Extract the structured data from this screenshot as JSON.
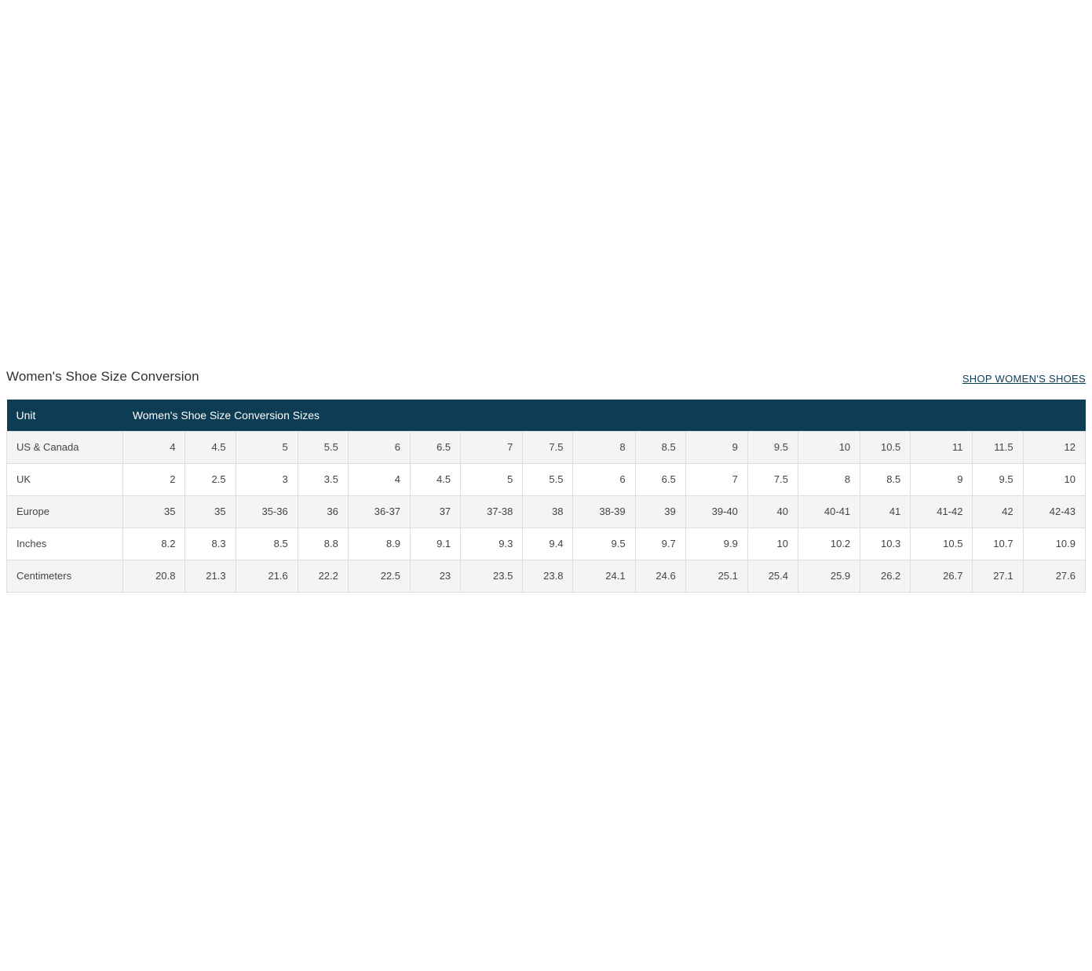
{
  "page": {
    "title": "Women's Shoe Size Conversion",
    "shop_link_label": "SHOP WOMEN'S SHOES"
  },
  "colors": {
    "header_bg": "#0d3c55",
    "header_text": "#ffffff",
    "row_alt_bg": "#f4f4f4",
    "row_bg": "#ffffff",
    "cell_border": "#dddddd",
    "body_text": "#444444",
    "link_text": "#0d3c55"
  },
  "table": {
    "header": {
      "unit_label": "Unit",
      "sizes_label": "Women's Shoe Size Conversion Sizes"
    },
    "rows": [
      {
        "label": "US & Canada",
        "values": [
          "4",
          "4.5",
          "5",
          "5.5",
          "6",
          "6.5",
          "7",
          "7.5",
          "8",
          "8.5",
          "9",
          "9.5",
          "10",
          "10.5",
          "11",
          "11.5",
          "12"
        ]
      },
      {
        "label": "UK",
        "values": [
          "2",
          "2.5",
          "3",
          "3.5",
          "4",
          "4.5",
          "5",
          "5.5",
          "6",
          "6.5",
          "7",
          "7.5",
          "8",
          "8.5",
          "9",
          "9.5",
          "10"
        ]
      },
      {
        "label": "Europe",
        "values": [
          "35",
          "35",
          "35-36",
          "36",
          "36-37",
          "37",
          "37-38",
          "38",
          "38-39",
          "39",
          "39-40",
          "40",
          "40-41",
          "41",
          "41-42",
          "42",
          "42-43"
        ]
      },
      {
        "label": "Inches",
        "values": [
          "8.2",
          "8.3",
          "8.5",
          "8.8",
          "8.9",
          "9.1",
          "9.3",
          "9.4",
          "9.5",
          "9.7",
          "9.9",
          "10",
          "10.2",
          "10.3",
          "10.5",
          "10.7",
          "10.9"
        ]
      },
      {
        "label": "Centimeters",
        "values": [
          "20.8",
          "21.3",
          "21.6",
          "22.2",
          "22.5",
          "23",
          "23.5",
          "23.8",
          "24.1",
          "24.6",
          "25.1",
          "25.4",
          "25.9",
          "26.2",
          "26.7",
          "27.1",
          "27.6"
        ]
      }
    ]
  }
}
